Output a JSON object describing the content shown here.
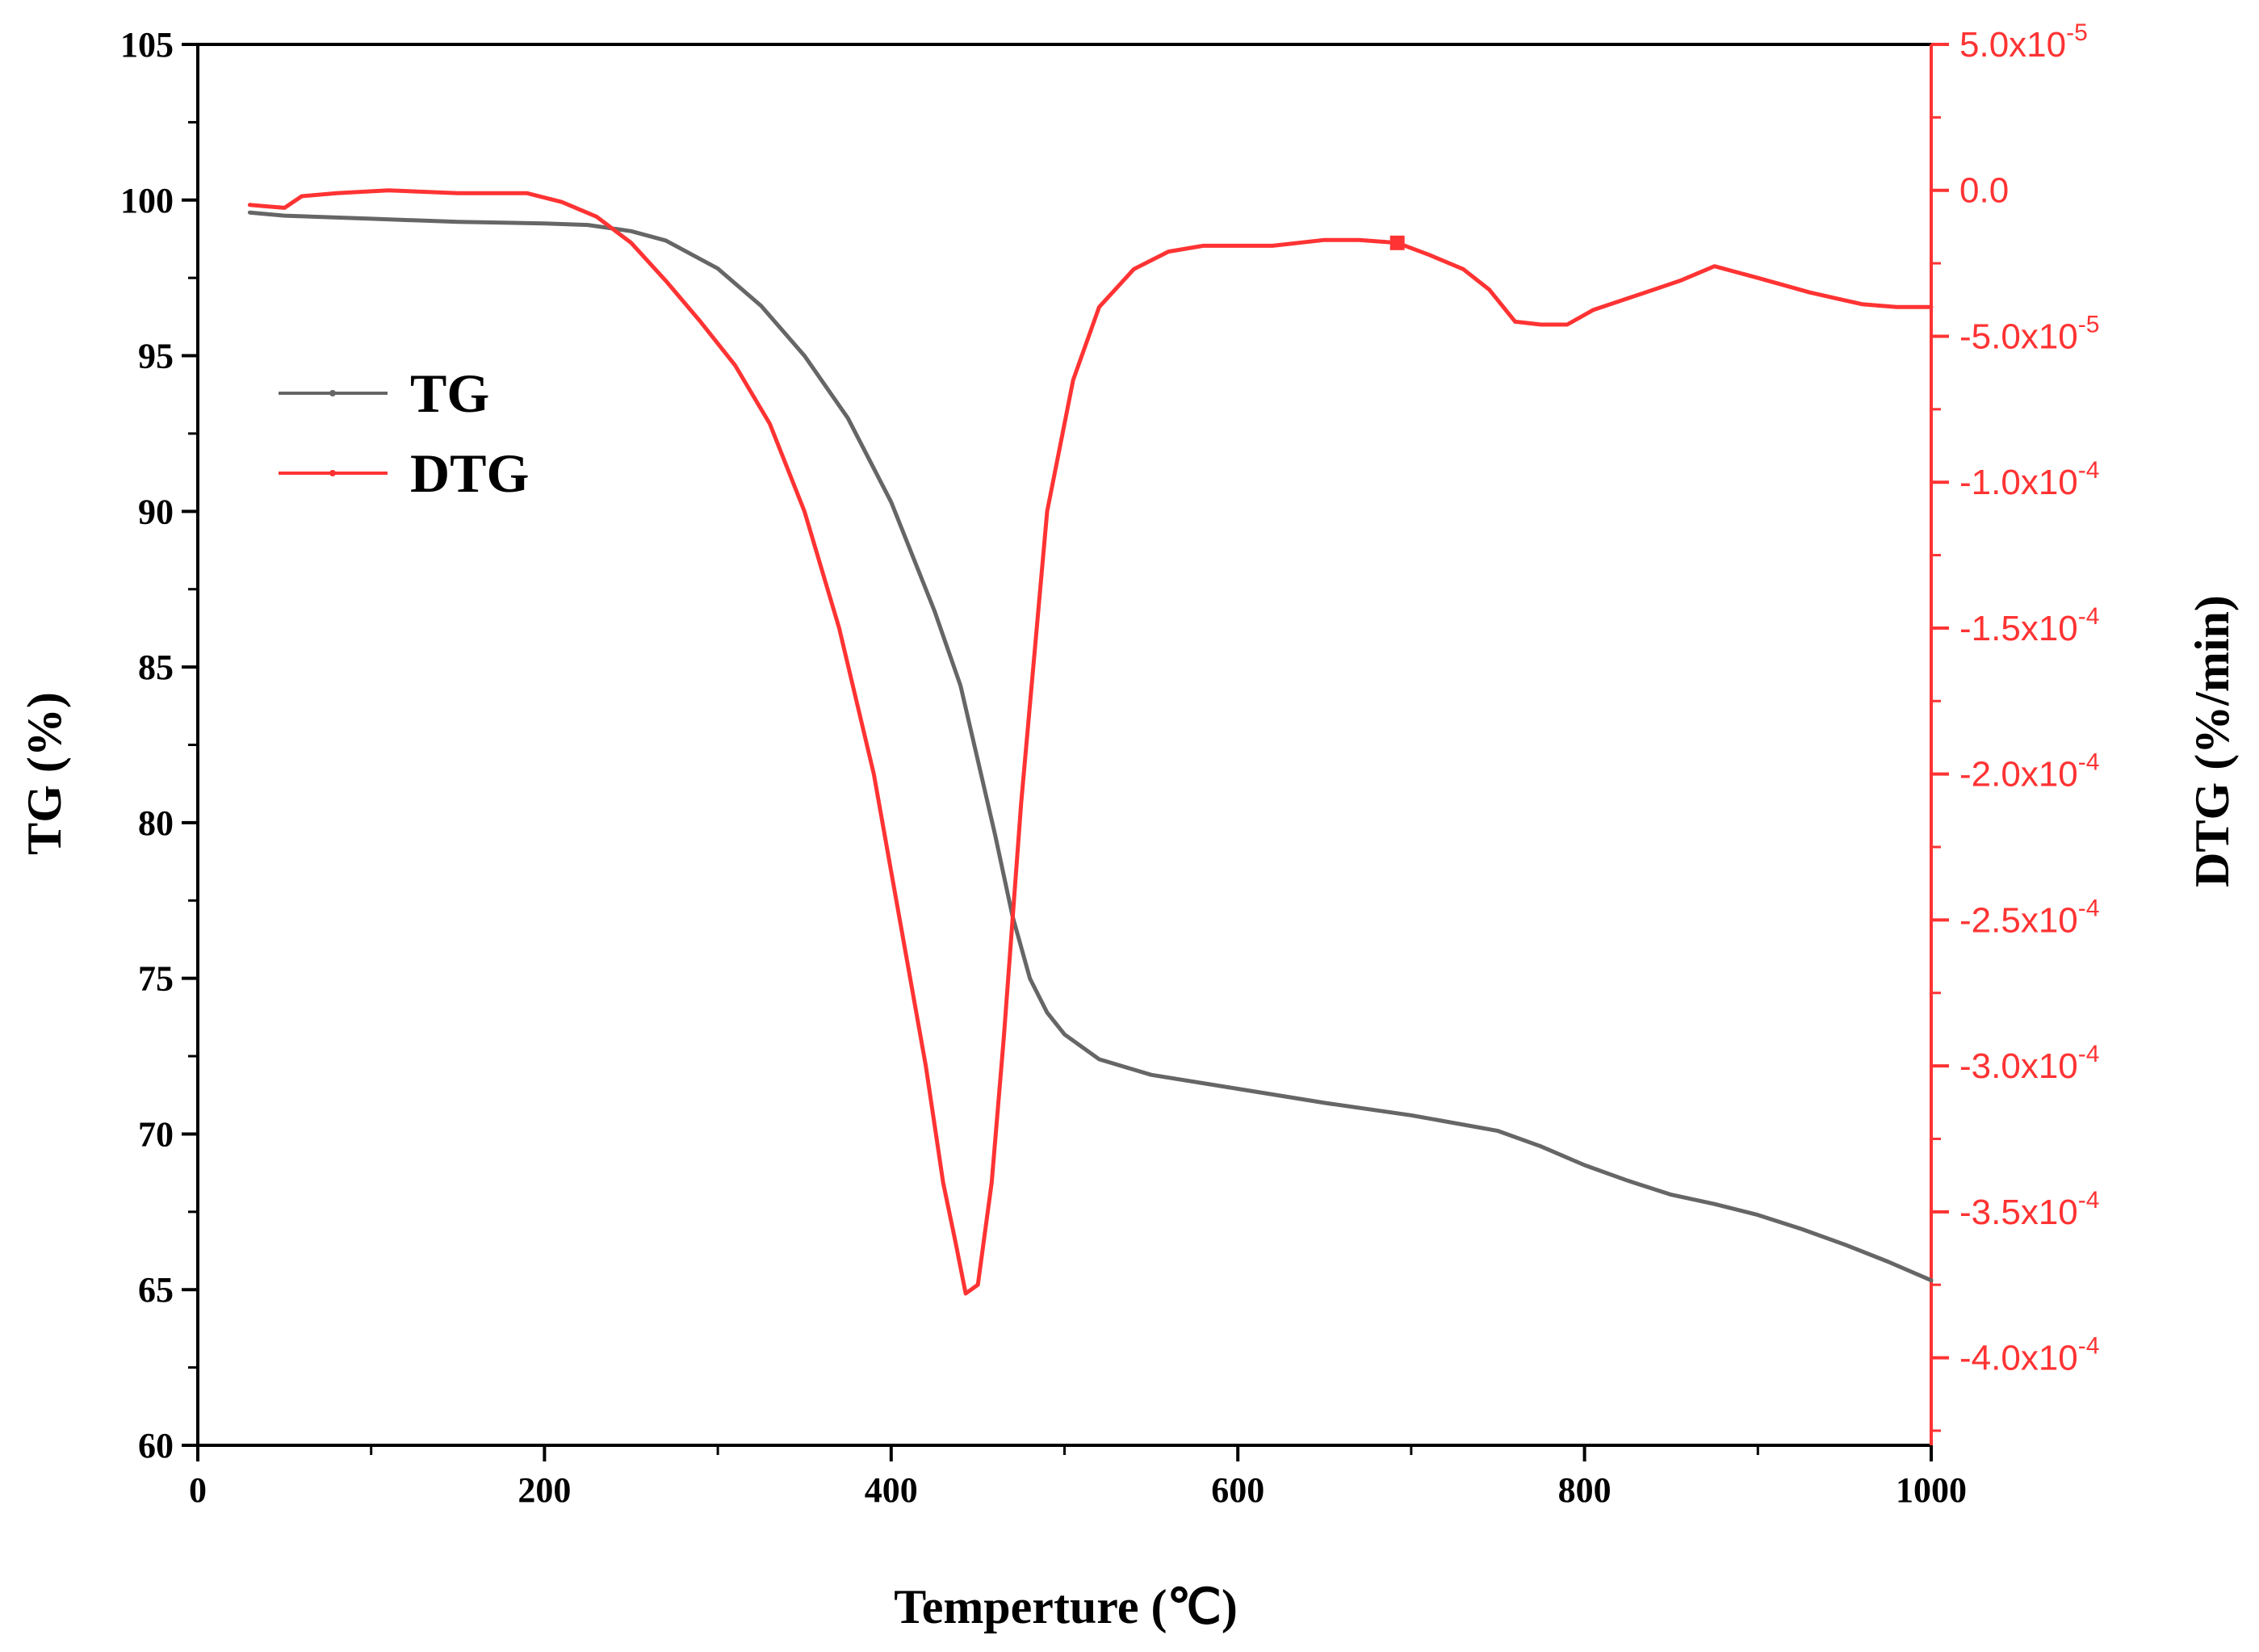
{
  "chart_data": {
    "type": "line",
    "xlabel": "Temperture (℃)",
    "ylabel_left": "TG (%)",
    "ylabel_right": "DTG (%/min)",
    "xlim": [
      0,
      1000
    ],
    "ylim_left": [
      60,
      105
    ],
    "ylim_right": [
      -0.00043,
      5e-05
    ],
    "x_ticks": [
      0,
      200,
      400,
      600,
      800,
      1000
    ],
    "x_tick_labels": [
      "0",
      "200",
      "400",
      "600",
      "800",
      "1000"
    ],
    "y_left_ticks": [
      60,
      65,
      70,
      75,
      80,
      85,
      90,
      95,
      100,
      105
    ],
    "y_left_tick_labels": [
      "60",
      "65",
      "70",
      "75",
      "80",
      "85",
      "90",
      "95",
      "100",
      "105"
    ],
    "y_right_ticks": [
      {
        "value": 5e-05,
        "mantissa": "5.0x10",
        "exponent": "-5"
      },
      {
        "value": 0.0,
        "mantissa": "0.0",
        "exponent": ""
      },
      {
        "value": -5e-05,
        "mantissa": "-5.0x10",
        "exponent": "-5"
      },
      {
        "value": -0.0001,
        "mantissa": "-1.0x10",
        "exponent": "-4"
      },
      {
        "value": -0.00015,
        "mantissa": "-1.5x10",
        "exponent": "-4"
      },
      {
        "value": -0.0002,
        "mantissa": "-2.0x10",
        "exponent": "-4"
      },
      {
        "value": -0.00025,
        "mantissa": "-2.5x10",
        "exponent": "-4"
      },
      {
        "value": -0.0003,
        "mantissa": "-3.0x10",
        "exponent": "-4"
      },
      {
        "value": -0.00035,
        "mantissa": "-3.5x10",
        "exponent": "-4"
      },
      {
        "value": -0.0004,
        "mantissa": "-4.0x10",
        "exponent": "-4"
      }
    ],
    "legend": {
      "position": "upper-left",
      "entries": [
        "TG",
        "DTG"
      ]
    },
    "colors": {
      "TG": "#666666",
      "DTG": "#ff3333",
      "right_axis": "#ff3333",
      "axes": "#000000"
    },
    "series": [
      {
        "name": "TG",
        "axis": "left",
        "points": [
          [
            30,
            99.6
          ],
          [
            50,
            99.5
          ],
          [
            100,
            99.4
          ],
          [
            150,
            99.3
          ],
          [
            200,
            99.25
          ],
          [
            225,
            99.2
          ],
          [
            250,
            99.0
          ],
          [
            270,
            98.7
          ],
          [
            300,
            97.8
          ],
          [
            325,
            96.6
          ],
          [
            350,
            95.0
          ],
          [
            375,
            93.0
          ],
          [
            400,
            90.3
          ],
          [
            425,
            86.8
          ],
          [
            440,
            84.4
          ],
          [
            450,
            82.0
          ],
          [
            460,
            79.6
          ],
          [
            470,
            77.0
          ],
          [
            480,
            75.0
          ],
          [
            490,
            73.9
          ],
          [
            500,
            73.2
          ],
          [
            520,
            72.4
          ],
          [
            550,
            71.9
          ],
          [
            600,
            71.45
          ],
          [
            650,
            71.0
          ],
          [
            700,
            70.6
          ],
          [
            750,
            70.1
          ],
          [
            775,
            69.6
          ],
          [
            800,
            69.0
          ],
          [
            825,
            68.5
          ],
          [
            850,
            68.05
          ],
          [
            875,
            67.75
          ],
          [
            900,
            67.4
          ],
          [
            925,
            66.95
          ],
          [
            950,
            66.45
          ],
          [
            975,
            65.9
          ],
          [
            1000,
            65.3
          ]
        ]
      },
      {
        "name": "DTG",
        "axis": "right",
        "points": [
          [
            30,
            -5e-06
          ],
          [
            40,
            -5.5e-06
          ],
          [
            50,
            -6e-06
          ],
          [
            55,
            -4e-06
          ],
          [
            60,
            -2e-06
          ],
          [
            80,
            -1e-06
          ],
          [
            110,
            0.0
          ],
          [
            150,
            -1e-06
          ],
          [
            190,
            -1e-06
          ],
          [
            210,
            -4e-06
          ],
          [
            230,
            -9e-06
          ],
          [
            250,
            -1.8e-05
          ],
          [
            270,
            -3.1e-05
          ],
          [
            290,
            -4.5e-05
          ],
          [
            310,
            -6e-05
          ],
          [
            330,
            -8e-05
          ],
          [
            350,
            -0.00011
          ],
          [
            370,
            -0.00015
          ],
          [
            390,
            -0.0002
          ],
          [
            405,
            -0.00025
          ],
          [
            420,
            -0.0003
          ],
          [
            430,
            -0.00034
          ],
          [
            437,
            -0.00036
          ],
          [
            443,
            -0.000378
          ],
          [
            450,
            -0.000375
          ],
          [
            458,
            -0.00034
          ],
          [
            465,
            -0.00029
          ],
          [
            475,
            -0.00021
          ],
          [
            490,
            -0.00011
          ],
          [
            505,
            -6.5e-05
          ],
          [
            520,
            -4e-05
          ],
          [
            540,
            -2.7e-05
          ],
          [
            560,
            -2.1e-05
          ],
          [
            580,
            -1.9e-05
          ],
          [
            620,
            -1.9e-05
          ],
          [
            650,
            -1.7e-05
          ],
          [
            670,
            -1.7e-05
          ],
          [
            692,
            -1.8e-05
          ],
          [
            710,
            -2.2e-05
          ],
          [
            730,
            -2.7e-05
          ],
          [
            745,
            -3.4e-05
          ],
          [
            760,
            -4.5e-05
          ],
          [
            775,
            -4.6e-05
          ],
          [
            790,
            -4.6e-05
          ],
          [
            805,
            -4.1e-05
          ],
          [
            830,
            -3.6e-05
          ],
          [
            855,
            -3.1e-05
          ],
          [
            875,
            -2.6e-05
          ],
          [
            900,
            -3e-05
          ],
          [
            930,
            -3.5e-05
          ],
          [
            960,
            -3.9e-05
          ],
          [
            980,
            -4e-05
          ],
          [
            1000,
            -4e-05
          ]
        ],
        "marker": {
          "x": 692,
          "y": -1.8e-05
        }
      }
    ]
  }
}
